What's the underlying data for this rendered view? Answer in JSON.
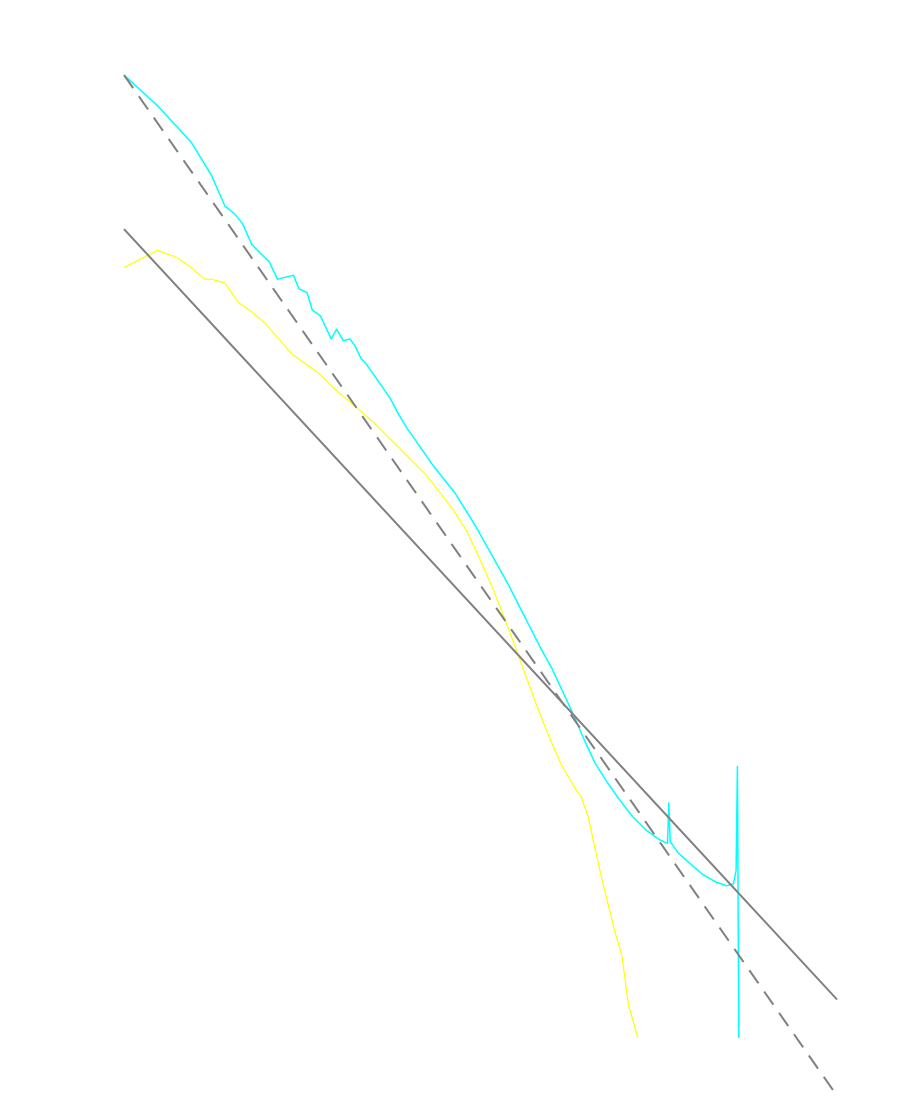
{
  "chart_data": {
    "type": "line",
    "grid": false,
    "legend": "none",
    "x_scale": "log",
    "y_scale": "log",
    "x_range": [
      0,
      5.3
    ],
    "y_range": [
      -5.2,
      0.2
    ],
    "series": [
      {
        "color": "#00ffff",
        "stroke_width": 1.5,
        "points": [
          [
            0.0,
            0.0
          ],
          [
            0.25,
            -0.16
          ],
          [
            0.5,
            -0.35
          ],
          [
            0.65,
            -0.52
          ],
          [
            0.75,
            -0.68
          ],
          [
            0.82,
            -0.72
          ],
          [
            0.88,
            -0.77
          ],
          [
            0.95,
            -0.88
          ],
          [
            1.02,
            -0.93
          ],
          [
            1.08,
            -0.97
          ],
          [
            1.14,
            -1.06
          ],
          [
            1.2,
            -1.05
          ],
          [
            1.26,
            -1.04
          ],
          [
            1.3,
            -1.11
          ],
          [
            1.36,
            -1.13
          ],
          [
            1.4,
            -1.22
          ],
          [
            1.46,
            -1.25
          ],
          [
            1.5,
            -1.31
          ],
          [
            1.54,
            -1.37
          ],
          [
            1.58,
            -1.32
          ],
          [
            1.63,
            -1.38
          ],
          [
            1.68,
            -1.37
          ],
          [
            1.72,
            -1.41
          ],
          [
            1.76,
            -1.47
          ],
          [
            1.8,
            -1.5
          ],
          [
            1.86,
            -1.56
          ],
          [
            1.92,
            -1.62
          ],
          [
            1.98,
            -1.68
          ],
          [
            2.04,
            -1.76
          ],
          [
            2.1,
            -1.83
          ],
          [
            2.16,
            -1.89
          ],
          [
            2.22,
            -1.95
          ],
          [
            2.3,
            -2.03
          ],
          [
            2.38,
            -2.1
          ],
          [
            2.46,
            -2.17
          ],
          [
            2.55,
            -2.27
          ],
          [
            2.62,
            -2.35
          ],
          [
            2.7,
            -2.45
          ],
          [
            2.78,
            -2.55
          ],
          [
            2.86,
            -2.65
          ],
          [
            2.94,
            -2.76
          ],
          [
            3.02,
            -2.87
          ],
          [
            3.1,
            -2.98
          ],
          [
            3.18,
            -3.08
          ],
          [
            3.26,
            -3.2
          ],
          [
            3.34,
            -3.32
          ],
          [
            3.42,
            -3.45
          ],
          [
            3.5,
            -3.57
          ],
          [
            3.58,
            -3.66
          ],
          [
            3.68,
            -3.76
          ],
          [
            3.78,
            -3.85
          ],
          [
            3.88,
            -3.92
          ],
          [
            3.98,
            -3.97
          ],
          [
            4.04,
            -3.99
          ],
          [
            4.05,
            -3.78
          ],
          [
            4.06,
            -3.98
          ],
          [
            4.12,
            -4.04
          ],
          [
            4.2,
            -4.09
          ],
          [
            4.3,
            -4.15
          ],
          [
            4.4,
            -4.19
          ],
          [
            4.48,
            -4.21
          ],
          [
            4.53,
            -4.2
          ],
          [
            4.55,
            -4.13
          ],
          [
            4.56,
            -3.59
          ],
          [
            4.57,
            -5.0
          ]
        ]
      },
      {
        "color": "#ffff00",
        "stroke_width": 1.2,
        "points": [
          [
            0.0,
            -1.0
          ],
          [
            0.25,
            -0.91
          ],
          [
            0.4,
            -0.95
          ],
          [
            0.5,
            -1.0
          ],
          [
            0.6,
            -1.06
          ],
          [
            0.65,
            -1.06
          ],
          [
            0.75,
            -1.08
          ],
          [
            0.85,
            -1.18
          ],
          [
            0.95,
            -1.23
          ],
          [
            1.05,
            -1.29
          ],
          [
            1.15,
            -1.37
          ],
          [
            1.25,
            -1.45
          ],
          [
            1.35,
            -1.5
          ],
          [
            1.45,
            -1.55
          ],
          [
            1.55,
            -1.62
          ],
          [
            1.65,
            -1.68
          ],
          [
            1.75,
            -1.74
          ],
          [
            1.85,
            -1.8
          ],
          [
            1.95,
            -1.87
          ],
          [
            2.05,
            -1.94
          ],
          [
            2.15,
            -2.01
          ],
          [
            2.25,
            -2.08
          ],
          [
            2.35,
            -2.17
          ],
          [
            2.45,
            -2.26
          ],
          [
            2.55,
            -2.37
          ],
          [
            2.65,
            -2.52
          ],
          [
            2.75,
            -2.68
          ],
          [
            2.85,
            -2.86
          ],
          [
            2.95,
            -3.05
          ],
          [
            3.05,
            -3.24
          ],
          [
            3.15,
            -3.42
          ],
          [
            3.25,
            -3.58
          ],
          [
            3.35,
            -3.7
          ],
          [
            3.4,
            -3.75
          ],
          [
            3.45,
            -3.85
          ],
          [
            3.55,
            -4.17
          ],
          [
            3.65,
            -4.45
          ],
          [
            3.7,
            -4.57
          ],
          [
            3.75,
            -4.83
          ],
          [
            3.82,
            -5.0
          ]
        ]
      },
      {
        "color": "#808080",
        "stroke_width": 2,
        "dashed": false,
        "points": [
          [
            0.0,
            -0.8
          ],
          [
            5.3,
            -4.8
          ]
        ]
      },
      {
        "color": "#808080",
        "stroke_width": 2,
        "dashed": true,
        "points": [
          [
            0.0,
            0.0
          ],
          [
            5.3,
            -5.3
          ]
        ]
      }
    ]
  }
}
